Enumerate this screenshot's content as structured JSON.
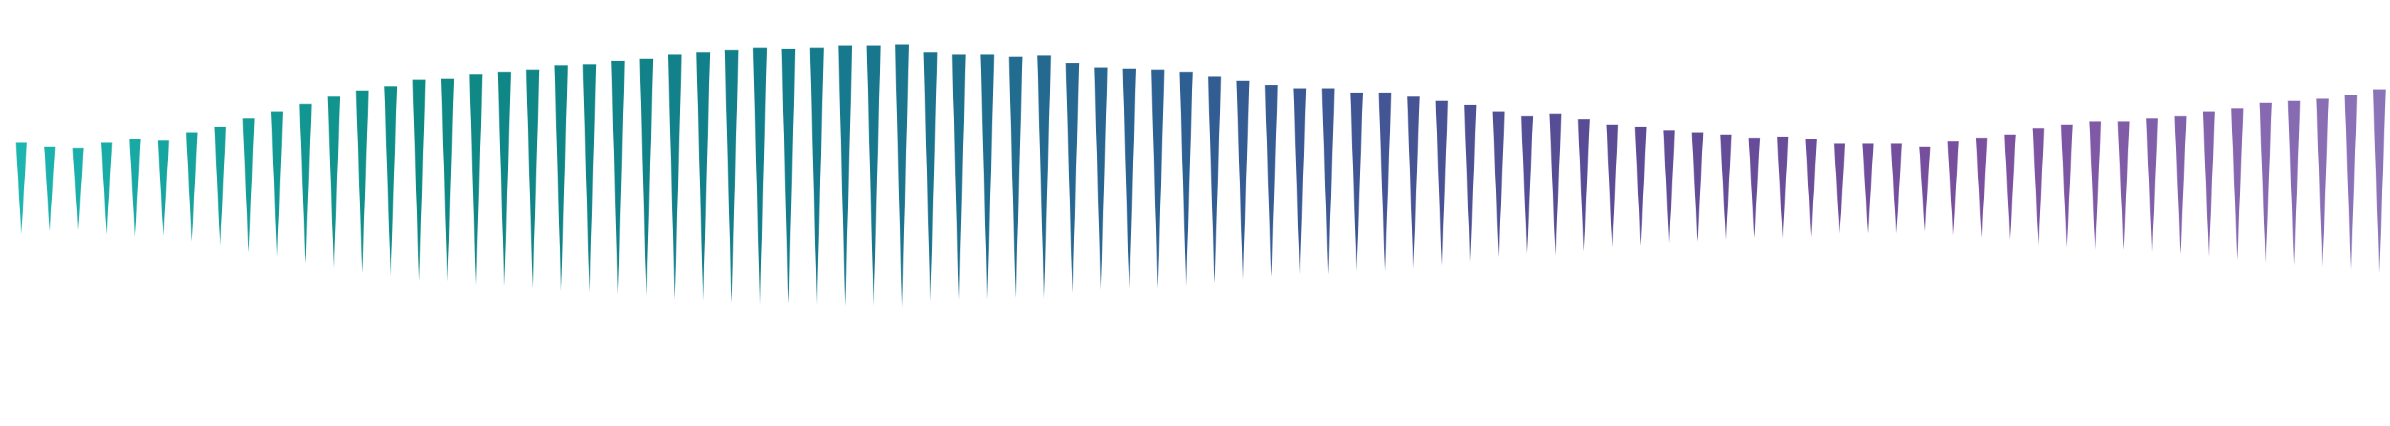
{
  "graphic": {
    "kind": "decorative-waveform",
    "mark_shape": "downward-triangle",
    "background": "#ffffff",
    "gradient_stops": [
      "#1cb5b0",
      "#0e8a85",
      "#147c8c",
      "#2f5e93",
      "#5a4b95",
      "#7a4f9e",
      "#8b73b8"
    ],
    "bar_count": 84,
    "levels": [
      0.48,
      0.44,
      0.43,
      0.48,
      0.51,
      0.5,
      0.57,
      0.62,
      0.7,
      0.76,
      0.83,
      0.9,
      0.95,
      0.99,
      1.05,
      1.06,
      1.1,
      1.12,
      1.14,
      1.18,
      1.19,
      1.22,
      1.24,
      1.28,
      1.3,
      1.32,
      1.34,
      1.33,
      1.34,
      1.36,
      1.36,
      1.37,
      1.3,
      1.28,
      1.28,
      1.26,
      1.27,
      1.2,
      1.16,
      1.15,
      1.14,
      1.12,
      1.08,
      1.04,
      1.0,
      0.97,
      0.97,
      0.93,
      0.93,
      0.9,
      0.86,
      0.82,
      0.76,
      0.72,
      0.74,
      0.69,
      0.64,
      0.62,
      0.59,
      0.57,
      0.55,
      0.52,
      0.53,
      0.51,
      0.47,
      0.47,
      0.47,
      0.44,
      0.49,
      0.52,
      0.55,
      0.61,
      0.64,
      0.67,
      0.67,
      0.7,
      0.72,
      0.76,
      0.79,
      0.84,
      0.86,
      0.88,
      0.91,
      0.96
    ]
  }
}
